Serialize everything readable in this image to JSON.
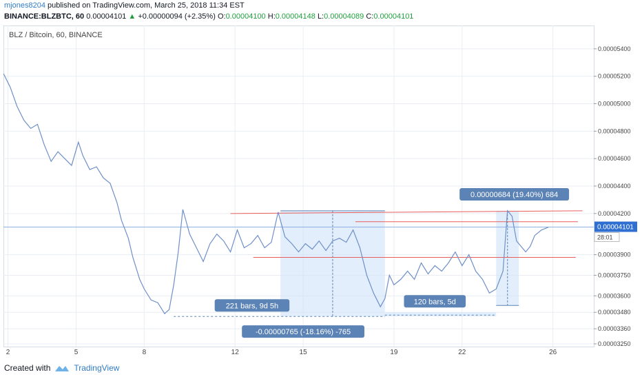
{
  "header": {
    "user": "mjones8204",
    "published": "published on TradingView.com, March 25, 2018 11:34 EST",
    "symbol": "BINANCE:BLZBTC, 60",
    "last": "0.00004101",
    "change": "+0.00000094 (+2.35%)",
    "o_label": "O:",
    "o": "0.00004100",
    "h_label": "H:",
    "h": "0.00004148",
    "l_label": "L:",
    "l": "0.00004089",
    "c_label": "C:",
    "c": "0.00004101"
  },
  "colors": {
    "line": "#6f8fc8",
    "grid": "#e9edf3",
    "range_red": "#e85c5c",
    "measure_fill": "#cfe3f8",
    "label_bg": "#5b83b5",
    "price_tag": "#2f6fd1"
  },
  "chart_data": {
    "type": "line",
    "title": "BLZ / Bitcoin, 60, BINANCE",
    "x_ticks": [
      "2",
      "5",
      "8",
      "12",
      "15",
      "19",
      "22",
      "26"
    ],
    "x_tick_days": [
      2,
      5,
      8,
      12,
      15,
      19,
      22,
      26
    ],
    "x_range": [
      1.8,
      27.8
    ],
    "y_range": [
      3.23e-05,
      5.57e-05
    ],
    "y_ticks": [
      "0.00005400",
      "0.00005200",
      "0.00005000",
      "0.00004800",
      "0.00004600",
      "0.00004400",
      "0.00004200",
      "0.00003900",
      "0.00003750",
      "0.00003600",
      "0.00003480",
      "0.00003360",
      "0.00003250"
    ],
    "y_tick_values": [
      5.4e-05,
      5.2e-05,
      5e-05,
      4.8e-05,
      4.6e-05,
      4.4e-05,
      4.2e-05,
      3.9e-05,
      3.75e-05,
      3.6e-05,
      3.48e-05,
      3.36e-05,
      3.25e-05
    ],
    "series": [
      {
        "x": [
          1.8,
          2.1,
          2.4,
          2.7,
          3.0,
          3.3,
          3.6,
          3.9,
          4.2,
          4.5,
          4.8,
          5.1,
          5.3,
          5.6,
          5.9,
          6.2,
          6.5,
          6.8,
          7.0,
          7.3,
          7.5,
          7.8,
          8.0,
          8.3,
          8.6,
          8.9,
          9.1,
          9.3,
          9.5,
          9.7,
          10.0,
          10.3,
          10.6,
          10.9,
          11.2,
          11.5,
          11.8,
          12.1,
          12.4,
          12.7,
          13.0,
          13.3,
          13.6,
          13.9,
          14.2,
          14.5,
          14.8,
          15.1,
          15.4,
          15.7,
          16.0,
          16.3,
          16.6,
          16.9,
          17.2,
          17.5,
          17.8,
          18.1,
          18.4,
          18.6,
          18.8,
          19.0,
          19.3,
          19.6,
          19.9,
          20.2,
          20.5,
          20.8,
          21.1,
          21.4,
          21.7,
          22.0,
          22.3,
          22.6,
          22.9,
          23.2,
          23.5,
          23.8,
          24.0,
          24.2,
          24.4,
          24.6,
          24.8,
          25.0,
          25.2,
          25.5,
          25.8
        ],
        "y": [
          5.22e-05,
          5.12e-05,
          4.98e-05,
          4.88e-05,
          4.82e-05,
          4.85e-05,
          4.7e-05,
          4.58e-05,
          4.65e-05,
          4.6e-05,
          4.55e-05,
          4.72e-05,
          4.62e-05,
          4.52e-05,
          4.54e-05,
          4.46e-05,
          4.42e-05,
          4.28e-05,
          4.15e-05,
          4.02e-05,
          3.88e-05,
          3.72e-05,
          3.65e-05,
          3.57e-05,
          3.55e-05,
          3.47e-05,
          3.5e-05,
          3.68e-05,
          3.92e-05,
          4.23e-05,
          4.05e-05,
          3.95e-05,
          3.85e-05,
          3.98e-05,
          4.05e-05,
          4e-05,
          3.92e-05,
          4.08e-05,
          3.95e-05,
          3.98e-05,
          4.04e-05,
          3.95e-05,
          3.99e-05,
          4.21e-05,
          4.03e-05,
          3.98e-05,
          3.92e-05,
          3.98e-05,
          3.94e-05,
          4e-05,
          3.93e-05,
          4e-05,
          4.02e-05,
          3.99e-05,
          4.08e-05,
          3.95e-05,
          3.75e-05,
          3.62e-05,
          3.52e-05,
          3.58e-05,
          3.75e-05,
          3.68e-05,
          3.72e-05,
          3.78e-05,
          3.72e-05,
          3.84e-05,
          3.76e-05,
          3.82e-05,
          3.78e-05,
          3.84e-05,
          3.92e-05,
          3.82e-05,
          3.9e-05,
          3.78e-05,
          3.72e-05,
          3.62e-05,
          3.65e-05,
          3.78e-05,
          4.22e-05,
          4.18e-05,
          4e-05,
          3.96e-05,
          3.92e-05,
          3.96e-05,
          4.04e-05,
          4.08e-05,
          4.1e-05
        ]
      }
    ],
    "last_price": "0.00004101",
    "last_price_value": 4.101e-05,
    "countdown": "28:01",
    "annotations": {
      "measure1": {
        "bars": "221 bars, 9d 5h",
        "change": "-0.00000765 (-18.16%) -765",
        "x0": 14.0,
        "x1": 18.6,
        "y_hi": 4.22e-05,
        "y_lo": 3.45e-05
      },
      "measure2": {
        "bars": "120 bars, 5d",
        "x0": 18.6,
        "x1": 23.5,
        "y": 3.46e-05
      },
      "measure3": {
        "change": "0.00000684 (19.40%) 684",
        "x0": 23.5,
        "x1": 24.5,
        "y_hi": 4.22e-05,
        "y_lo": 3.53e-05
      },
      "red_lines": [
        {
          "x0": 11.8,
          "x1": 27.3,
          "y0": 4.2e-05,
          "y1": 4.22e-05
        },
        {
          "x0": 17.3,
          "x1": 27.1,
          "y0": 4.14e-05,
          "y1": 4.14e-05
        },
        {
          "x0": 12.8,
          "x1": 27.0,
          "y0": 3.88e-05,
          "y1": 3.88e-05
        }
      ],
      "low_dotted": {
        "x0": 9.3,
        "x1": 18.6,
        "y": 3.45e-05
      }
    }
  },
  "footer": {
    "created": "Created with",
    "brand": "TradingView"
  }
}
